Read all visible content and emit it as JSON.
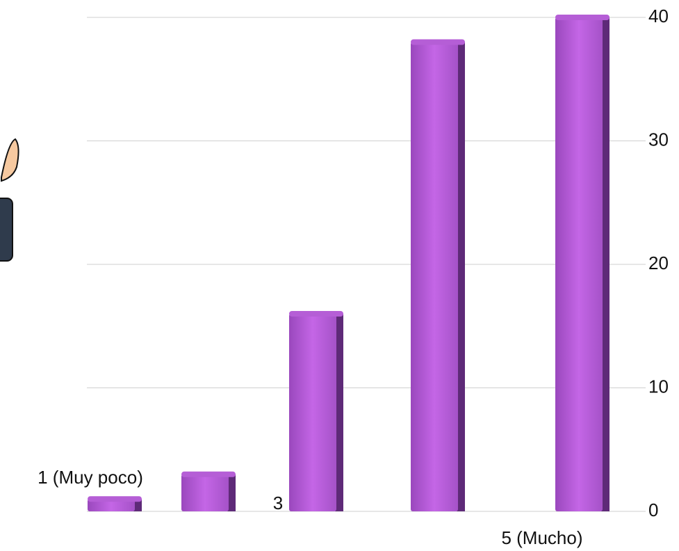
{
  "chart_data": {
    "type": "bar",
    "categories": [
      "1 (Muy poco)",
      null,
      "3",
      null,
      "5 (Mucho)"
    ],
    "values": [
      1,
      3,
      16,
      38,
      40
    ],
    "color": "#b55ed6",
    "ylim": [
      0,
      40
    ],
    "yticks": [
      0,
      10,
      20,
      30,
      40
    ],
    "grid": true
  }
}
